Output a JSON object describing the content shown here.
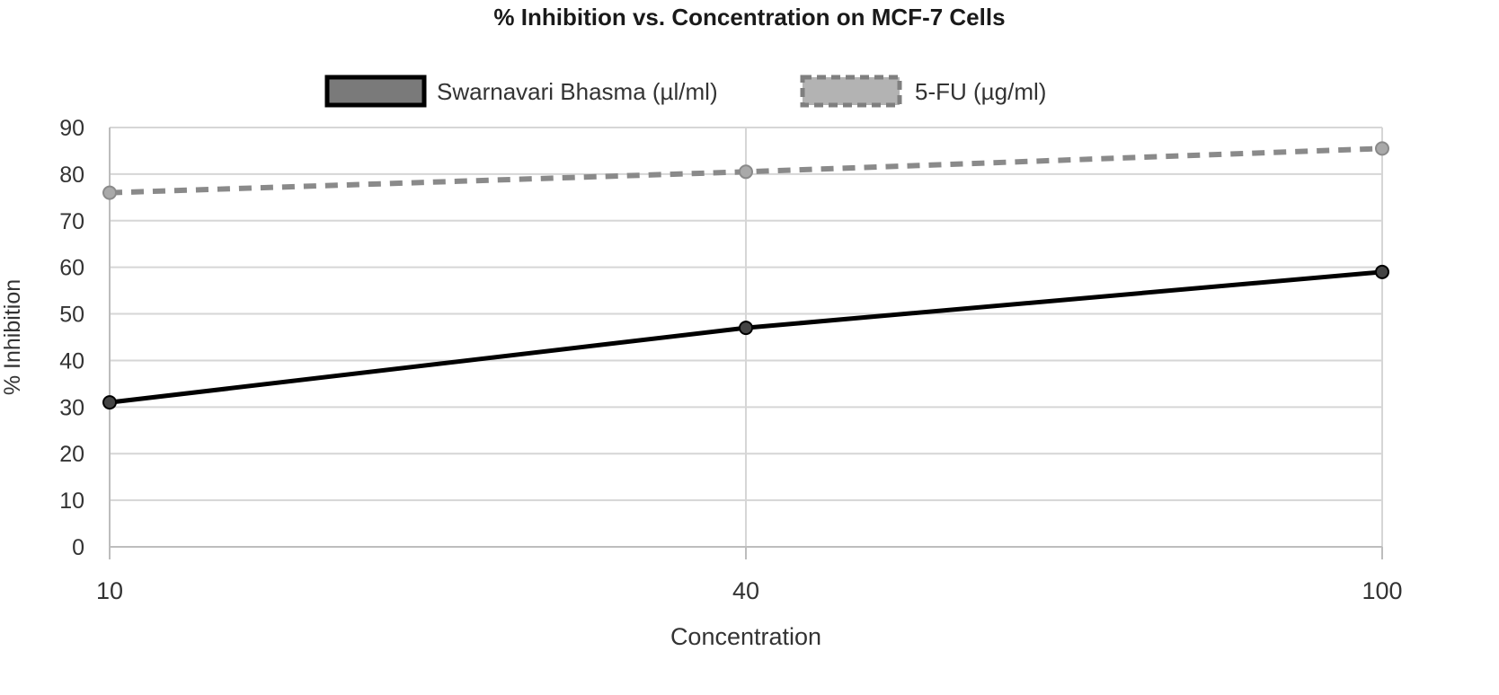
{
  "chart_data": {
    "type": "line",
    "title": "% Inhibition vs. Concentration on MCF-7 Cells",
    "xlabel": "Concentration",
    "ylabel": "% Inhibition",
    "x": [
      "10",
      "40",
      "100"
    ],
    "yticks": [
      "0",
      "10",
      "20",
      "30",
      "40",
      "50",
      "60",
      "70",
      "80",
      "90"
    ],
    "ylim": [
      0,
      90
    ],
    "grid": true,
    "legend_position": "top-center",
    "series": [
      {
        "name": "Swarnavari Bhasma (µl/ml)",
        "values": [
          31,
          47,
          59
        ],
        "color": "#000000",
        "style": "solid"
      },
      {
        "name": "5-FU (µg/ml)",
        "values": [
          76,
          80.5,
          85.5
        ],
        "color": "#8a8a8a",
        "style": "dashed"
      }
    ]
  }
}
